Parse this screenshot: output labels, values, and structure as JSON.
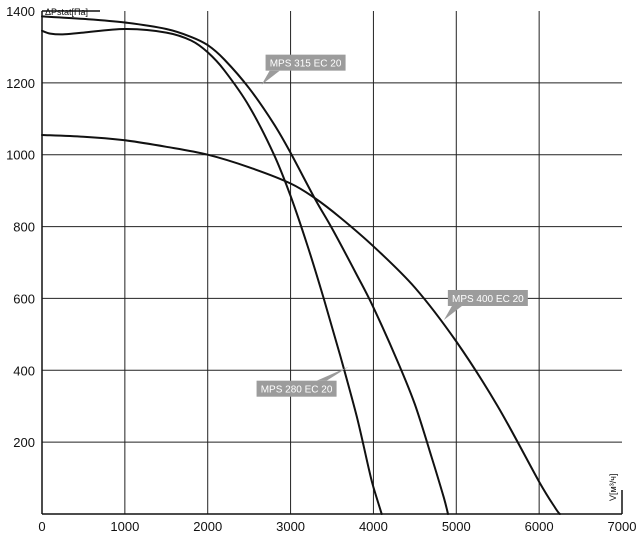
{
  "chart_data": {
    "type": "line",
    "xlabel": "V[м³/ч]",
    "ylabel": "ΔPstat[Па]",
    "xlim": [
      0,
      7000
    ],
    "ylim": [
      0,
      1400
    ],
    "grid": true,
    "x_ticks": [
      "0",
      "1000",
      "2000",
      "3000",
      "4000",
      "5000",
      "6000",
      "7000"
    ],
    "y_ticks": [
      "200",
      "400",
      "600",
      "800",
      "1000",
      "1200",
      "1400"
    ],
    "series": [
      {
        "name": "MPS 280 EC 20",
        "x": [
          0,
          100,
          250,
          500,
          1000,
          1500,
          1800,
          2000,
          2200,
          2500,
          2800,
          3000,
          3200,
          3400,
          3600,
          3800,
          3950,
          4000,
          4100
        ],
        "y": [
          1345,
          1337,
          1335,
          1340,
          1350,
          1340,
          1318,
          1285,
          1235,
          1135,
          1000,
          885,
          750,
          600,
          440,
          270,
          120,
          75,
          0
        ]
      },
      {
        "name": "MPS 315 EC 20",
        "x": [
          0,
          500,
          1000,
          1500,
          1800,
          2000,
          2200,
          2500,
          2800,
          3000,
          3300,
          3500,
          3800,
          4000,
          4300,
          4500,
          4700,
          4850,
          4900
        ],
        "y": [
          1385,
          1378,
          1368,
          1350,
          1328,
          1305,
          1265,
          1185,
          1085,
          1005,
          875,
          795,
          665,
          575,
          420,
          305,
          160,
          45,
          0
        ]
      },
      {
        "name": "MPS 400 EC 20",
        "x": [
          0,
          500,
          1000,
          1500,
          2000,
          2500,
          3000,
          3300,
          3600,
          4000,
          4500,
          5000,
          5500,
          6000,
          6200,
          6250
        ],
        "y": [
          1055,
          1050,
          1040,
          1022,
          1000,
          965,
          920,
          878,
          825,
          745,
          630,
          480,
          300,
          90,
          15,
          0
        ]
      }
    ],
    "annotations": [
      {
        "text": "MPS 315 EC 20",
        "series": 1,
        "at_x": 2650,
        "at_y": 1195,
        "pos": "upper-right"
      },
      {
        "text": "MPS 400 EC 20",
        "series": 2,
        "at_x": 4850,
        "at_y": 540,
        "pos": "upper-right"
      },
      {
        "text": "MPS 280 EC 20",
        "series": 0,
        "at_x": 3700,
        "at_y": 410,
        "pos": "lower-left"
      }
    ]
  }
}
